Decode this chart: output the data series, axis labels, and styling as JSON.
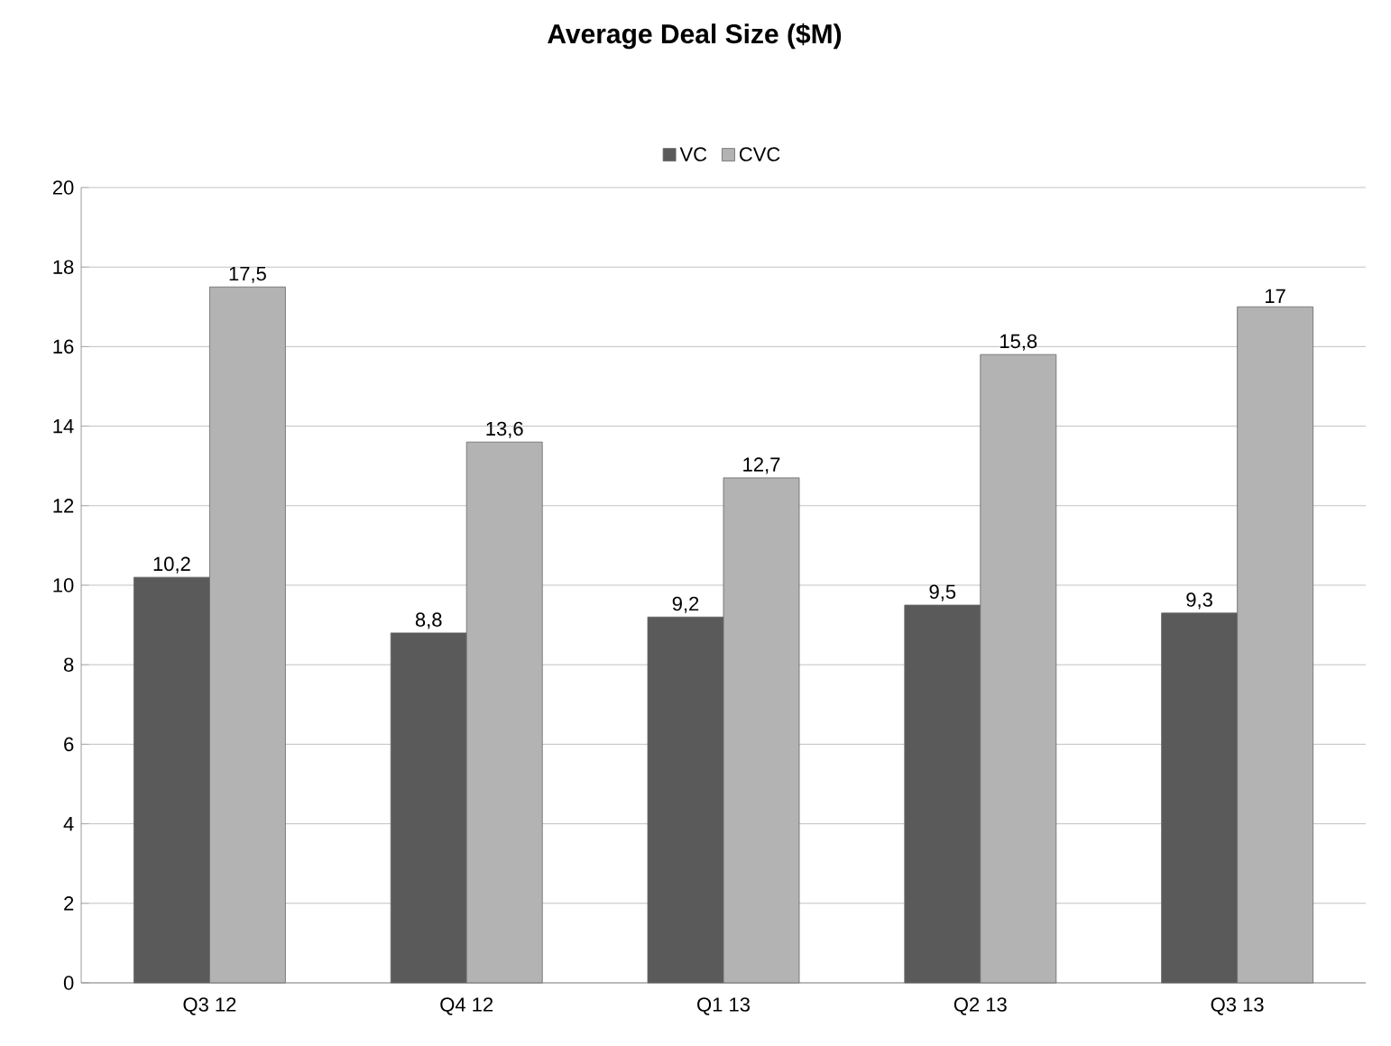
{
  "chart_data": {
    "type": "bar",
    "title": "Average Deal Size ($M)",
    "categories": [
      "Q3 12",
      "Q4 12",
      "Q1 13",
      "Q2 13",
      "Q3 13"
    ],
    "series": [
      {
        "name": "VC",
        "color": "#5a5a5a",
        "values": [
          10.2,
          8.8,
          9.2,
          9.5,
          9.3
        ],
        "value_labels": [
          "10,2",
          "8,8",
          "9,2",
          "9,5",
          "9,3"
        ]
      },
      {
        "name": "CVC",
        "color": "#b3b3b3",
        "values": [
          17.5,
          13.6,
          12.7,
          15.8,
          17
        ],
        "value_labels": [
          "17,5",
          "13,6",
          "12,7",
          "15,8",
          "17"
        ]
      }
    ],
    "ylim": [
      0,
      20
    ],
    "yticks": [
      0,
      2,
      4,
      6,
      8,
      10,
      12,
      14,
      16,
      18,
      20
    ],
    "grid": "y",
    "legend": "top"
  }
}
